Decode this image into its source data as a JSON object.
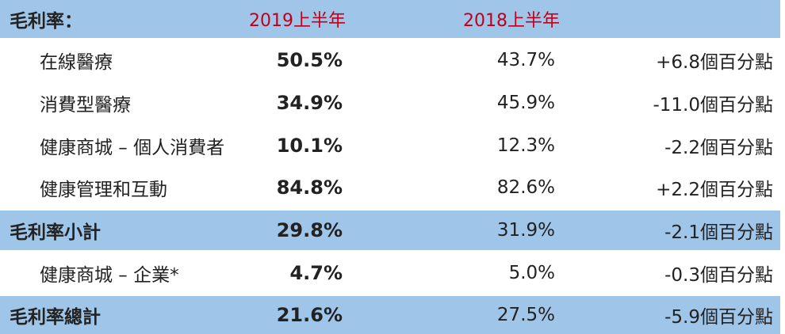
{
  "header": {
    "label": "毛利率：",
    "col_2019": "2019上半年",
    "col_2018": "2018上半年"
  },
  "rows": [
    {
      "label": "在線醫療",
      "v2019": "50.5%",
      "v2018": "43.7%",
      "diff": "+6.8個百分點"
    },
    {
      "label": "消費型醫療",
      "v2019": "34.9%",
      "v2018": "45.9%",
      "diff": "-11.0個百分點"
    },
    {
      "label": "健康商城 – 個人消費者",
      "v2019": "10.1%",
      "v2018": "12.3%",
      "diff": "-2.2個百分點"
    },
    {
      "label": "健康管理和互動",
      "v2019": "84.8%",
      "v2018": "82.6%",
      "diff": "+2.2個百分點"
    },
    {
      "label": "毛利率小計",
      "v2019": "29.8%",
      "v2018": "31.9%",
      "diff": "-2.1個百分點"
    },
    {
      "label": "健康商城 – 企業*",
      "v2019": "4.7%",
      "v2018": "5.0%",
      "diff": "-0.3個百分點"
    },
    {
      "label": "毛利率總計",
      "v2019": "21.6%",
      "v2018": "27.5%",
      "diff": "-5.9個百分點"
    }
  ],
  "colors": {
    "band": "#9fc5e8",
    "header_year": "#c0001a"
  }
}
